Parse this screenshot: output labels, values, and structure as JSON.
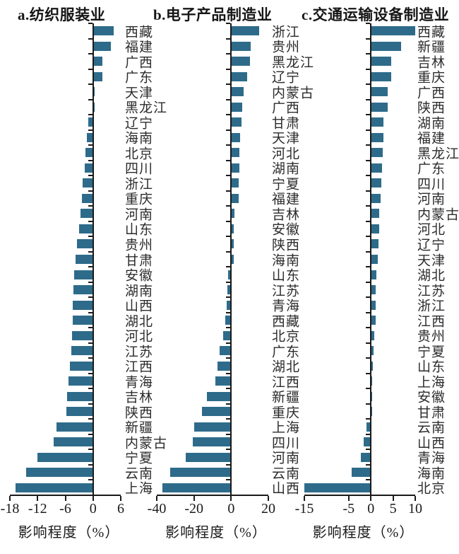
{
  "figure": {
    "background": "#ffffff",
    "bar_color": "#2e6b8a",
    "axis_color": "#1a1a1a",
    "text_color": "#2c2c2c"
  },
  "chart_data": [
    {
      "type": "bar",
      "orientation": "horizontal",
      "title": "a.纺织服装业",
      "xlabel": "影响程度（%）",
      "xlim": [
        -18,
        6
      ],
      "xticks": [
        -18,
        -12,
        -6,
        0,
        6
      ],
      "grid": false,
      "categories": [
        "西藏",
        "福建",
        "广西",
        "广东",
        "天津",
        "黑龙江",
        "辽宁",
        "海南",
        "北京",
        "四川",
        "浙江",
        "重庆",
        "河南",
        "山东",
        "贵州",
        "甘肃",
        "安徽",
        "湖南",
        "山西",
        "湖北",
        "河北",
        "江苏",
        "江西",
        "青海",
        "吉林",
        "陕西",
        "新疆",
        "内蒙古",
        "宁夏",
        "云南",
        "上海"
      ],
      "values": [
        4.3,
        3.7,
        1.9,
        1.8,
        0.2,
        0.1,
        -0.9,
        -1.2,
        -1.5,
        -1.6,
        -2.1,
        -2.3,
        -2.5,
        -2.9,
        -3.3,
        -3.6,
        -3.9,
        -4.1,
        -4.2,
        -4.3,
        -4.4,
        -4.6,
        -4.9,
        -5.2,
        -5.4,
        -5.6,
        -7.7,
        -8.3,
        -11.9,
        -14.3,
        -16.7
      ]
    },
    {
      "type": "bar",
      "orientation": "horizontal",
      "title": "b.电子产品制造业",
      "xlabel": "影响程度（%）",
      "xlim": [
        -40,
        20
      ],
      "xticks": [
        -40,
        -20,
        0,
        20
      ],
      "grid": false,
      "categories": [
        "浙江",
        "贵州",
        "黑龙江",
        "辽宁",
        "内蒙古",
        "广西",
        "甘肃",
        "天津",
        "河北",
        "湖南",
        "宁夏",
        "福建",
        "吉林",
        "安徽",
        "陕西",
        "海南",
        "山东",
        "江苏",
        "青海",
        "西藏",
        "北京",
        "广东",
        "湖北",
        "江西",
        "新疆",
        "重庆",
        "上海",
        "四川",
        "河南",
        "云南",
        "山西"
      ],
      "values": [
        14.5,
        10.1,
        9.8,
        8.2,
        6.3,
        5.4,
        5.2,
        4.4,
        4.1,
        3.9,
        3.8,
        3.8,
        1.3,
        1.2,
        1.1,
        1.0,
        -1.2,
        -1.7,
        -1.9,
        -2.8,
        -3.8,
        -5.7,
        -7.0,
        -8.0,
        -12.6,
        -15.4,
        -19.5,
        -20.4,
        -24.2,
        -32.4,
        -36.6
      ]
    },
    {
      "type": "bar",
      "orientation": "horizontal",
      "title": "c.交通运输设备制造业",
      "xlabel": "影响程度（%）",
      "xlim": [
        -15,
        10
      ],
      "xticks": [
        -15,
        -5,
        0,
        5,
        10
      ],
      "grid": false,
      "categories": [
        "西藏",
        "新疆",
        "吉林",
        "重庆",
        "广西",
        "陕西",
        "湖南",
        "福建",
        "黑龙江",
        "广东",
        "四川",
        "河南",
        "内蒙古",
        "河北",
        "辽宁",
        "天津",
        "湖北",
        "江苏",
        "浙江",
        "江西",
        "贵州",
        "宁夏",
        "山东",
        "上海",
        "安徽",
        "甘肃",
        "云南",
        "山西",
        "青海",
        "海南",
        "北京"
      ],
      "values": [
        9.8,
        6.7,
        4.5,
        4.4,
        3.7,
        3.6,
        2.7,
        2.6,
        2.5,
        2.4,
        2.2,
        2.1,
        1.8,
        1.7,
        1.6,
        1.4,
        1.1,
        1.0,
        0.9,
        0.9,
        0.6,
        0.4,
        0.3,
        0.2,
        0.2,
        0.1,
        -0.9,
        -1.5,
        -2.1,
        -4.2,
        -14.8
      ]
    }
  ]
}
